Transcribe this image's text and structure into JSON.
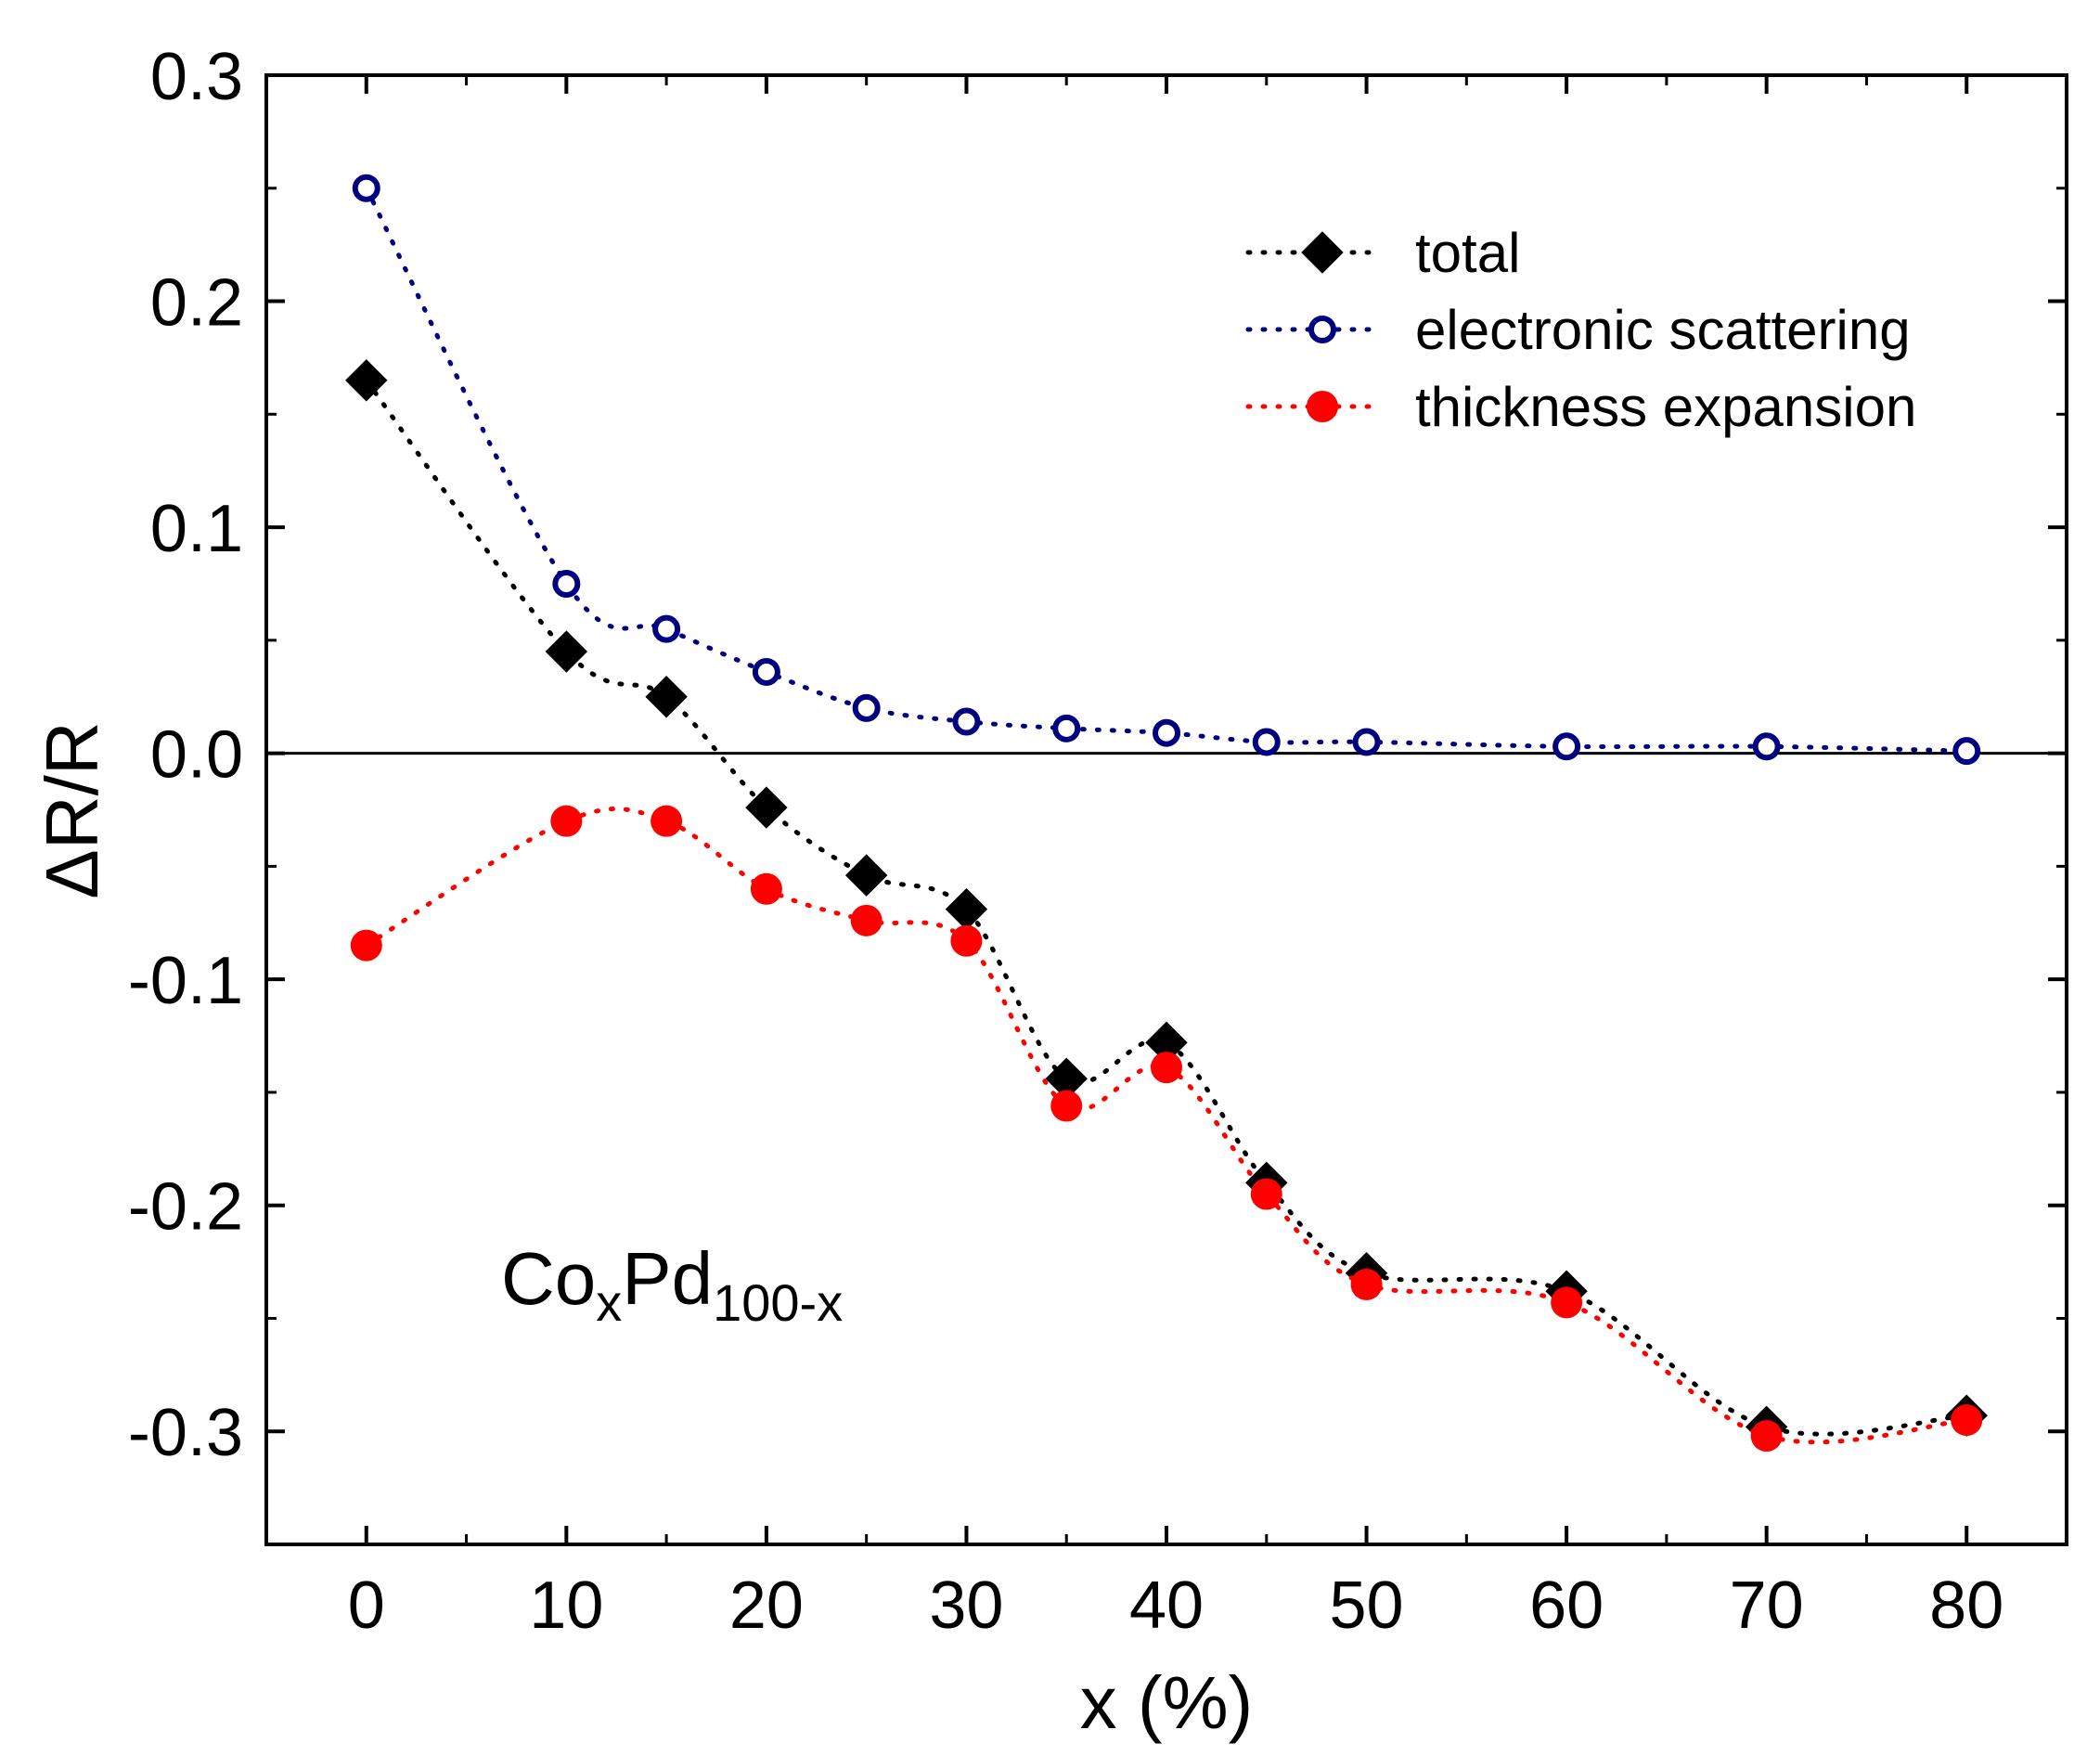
{
  "chart_data": {
    "type": "scatter",
    "title": "",
    "xlabel": "x (%)",
    "ylabel": "ΔR/R",
    "xlim": [
      -5,
      85
    ],
    "ylim": [
      -0.35,
      0.3
    ],
    "xticks": [
      0,
      10,
      20,
      30,
      40,
      50,
      60,
      70,
      80
    ],
    "yticks": [
      -0.3,
      -0.2,
      -0.1,
      0.0,
      0.1,
      0.2,
      0.3
    ],
    "xtick_labels": [
      "0",
      "10",
      "20",
      "30",
      "40",
      "50",
      "60",
      "70",
      "80"
    ],
    "ytick_labels": [
      "-0.3",
      "-0.2",
      "-0.1",
      "0.0",
      "0.1",
      "0.2",
      "0.3"
    ],
    "zero_line": true,
    "grid": false,
    "legend_position": "top-right",
    "annotation": {
      "base1": "Co",
      "sub1": "x",
      "base2": "Pd",
      "sub2": "100-x"
    },
    "series": [
      {
        "name": "total",
        "marker": "diamond-filled",
        "color": "#000000",
        "x": [
          0,
          10,
          15,
          20,
          25,
          30,
          35,
          40,
          45,
          50,
          60,
          70,
          80
        ],
        "y": [
          0.165,
          0.045,
          0.025,
          -0.024,
          -0.054,
          -0.069,
          -0.144,
          -0.128,
          -0.19,
          -0.23,
          -0.238,
          -0.298,
          -0.293
        ]
      },
      {
        "name": "electronic scattering",
        "marker": "circle-open",
        "color": "#000080",
        "x": [
          0,
          10,
          15,
          20,
          25,
          30,
          35,
          40,
          45,
          50,
          60,
          70,
          80
        ],
        "y": [
          0.25,
          0.075,
          0.055,
          0.036,
          0.02,
          0.014,
          0.011,
          0.009,
          0.005,
          0.005,
          0.003,
          0.003,
          0.001
        ]
      },
      {
        "name": "thickness expansion",
        "marker": "circle-filled",
        "color": "#ff0000",
        "x": [
          0,
          10,
          15,
          20,
          25,
          30,
          35,
          40,
          45,
          50,
          60,
          70,
          80
        ],
        "y": [
          -0.085,
          -0.03,
          -0.03,
          -0.06,
          -0.074,
          -0.083,
          -0.156,
          -0.139,
          -0.195,
          -0.235,
          -0.243,
          -0.302,
          -0.295
        ]
      }
    ]
  }
}
